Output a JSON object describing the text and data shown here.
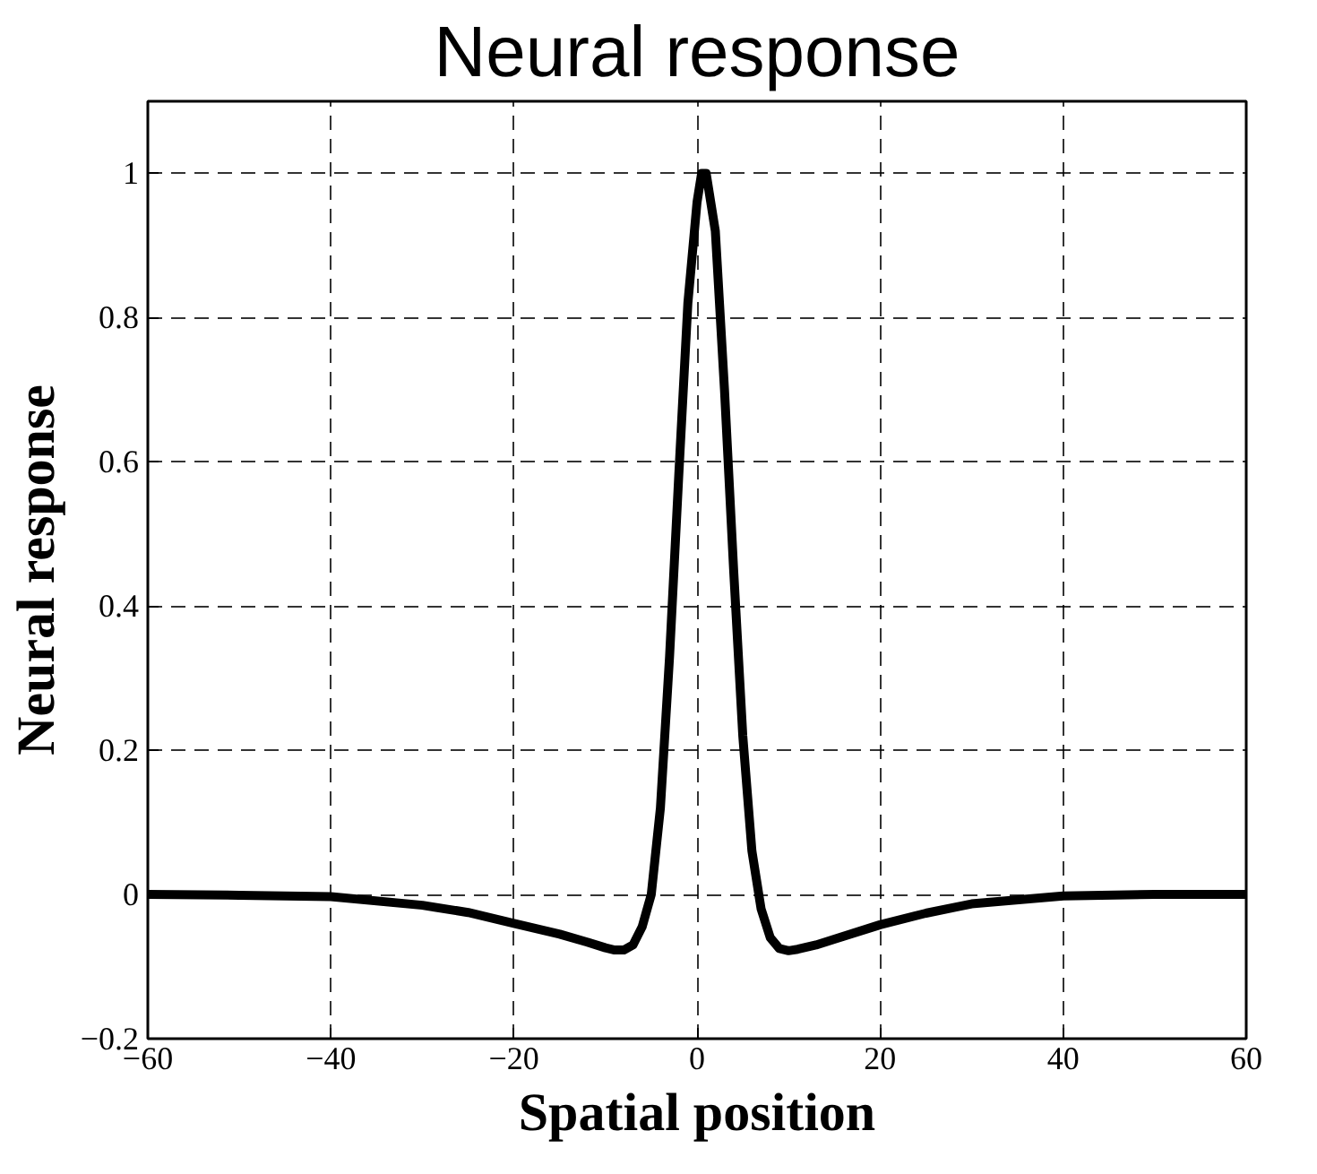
{
  "chart_data": {
    "type": "line",
    "title": "Neural response",
    "xlabel": "Spatial position",
    "ylabel": "Neural response",
    "x": [
      -60,
      -50,
      -40,
      -30,
      -25,
      -20,
      -15,
      -12,
      -10,
      -9,
      -8,
      -7,
      -6,
      -5,
      -4,
      -3,
      -2,
      -1,
      0,
      0.5,
      1,
      2,
      3,
      4,
      5,
      6,
      7,
      8,
      9,
      10,
      11,
      13,
      15,
      20,
      25,
      30,
      40,
      50,
      60
    ],
    "series": [
      {
        "color": "#000000",
        "values": [
          0,
          -0.001,
          -0.003,
          -0.015,
          -0.025,
          -0.04,
          -0.055,
          -0.066,
          -0.074,
          -0.077,
          -0.077,
          -0.07,
          -0.045,
          0.0,
          0.12,
          0.33,
          0.58,
          0.82,
          0.96,
          1.0,
          1.0,
          0.92,
          0.7,
          0.45,
          0.22,
          0.06,
          -0.02,
          -0.06,
          -0.075,
          -0.078,
          -0.076,
          -0.07,
          -0.062,
          -0.042,
          -0.026,
          -0.013,
          -0.002,
          0,
          0
        ]
      }
    ],
    "xlim": [
      -60,
      60
    ],
    "xticks": [
      {
        "value": -60,
        "label": "−60"
      },
      {
        "value": -40,
        "label": "−40"
      },
      {
        "value": -20,
        "label": "−20"
      },
      0,
      20,
      40,
      60
    ],
    "ylim": [
      -0.2,
      1.1
    ],
    "yticks": [
      {
        "value": -0.2,
        "label": "−0.2"
      },
      0,
      0.2,
      0.4,
      0.6,
      0.8,
      1
    ],
    "grid": true,
    "line_style": "solid",
    "marker": "none"
  }
}
